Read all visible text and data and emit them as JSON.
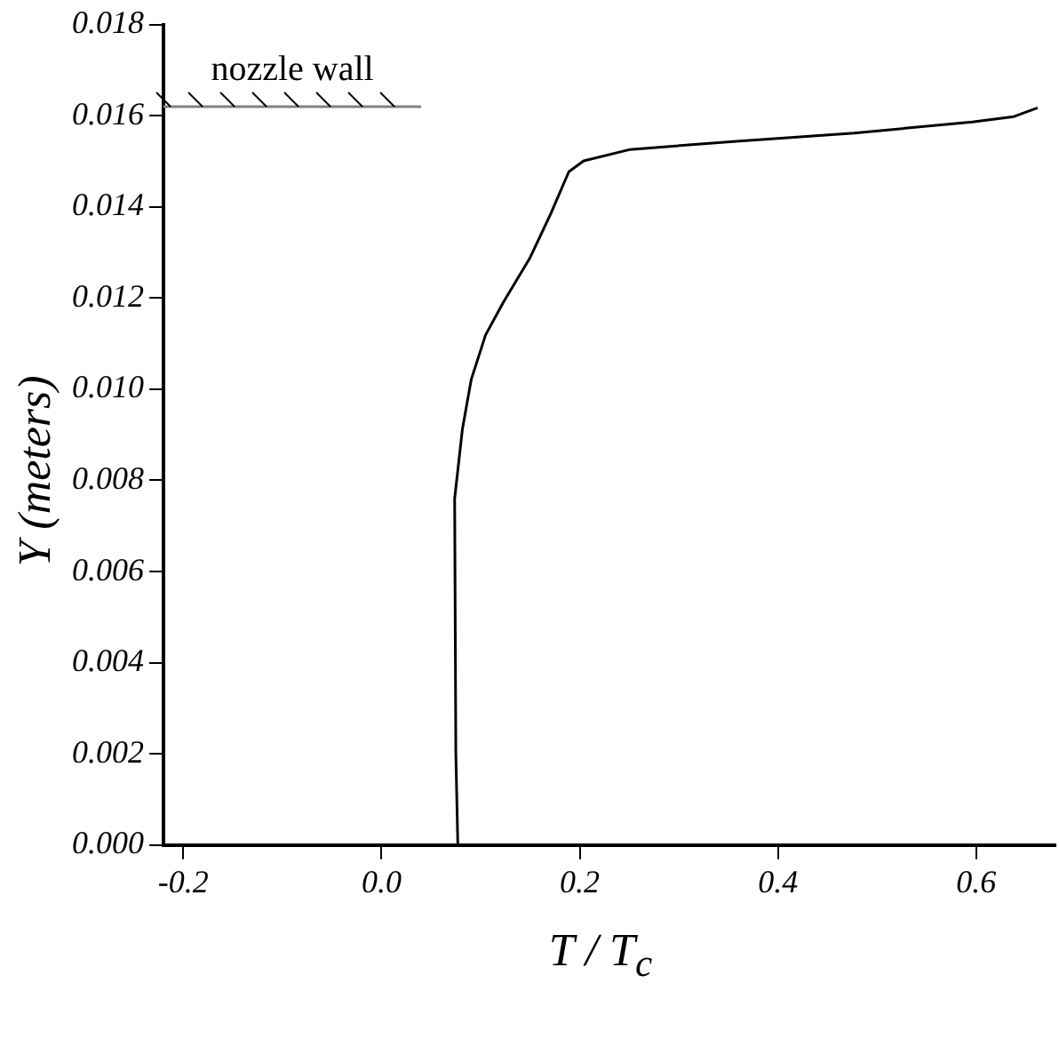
{
  "chart_data": {
    "type": "line",
    "xlabel": "T / T$_{c}$",
    "ylabel": "Y (meters)",
    "xlim": [
      -0.22,
      0.68
    ],
    "ylim": [
      0,
      0.018
    ],
    "xticks": [
      {
        "value": -0.2,
        "label": "-0.2"
      },
      {
        "value": 0,
        "label": "0.0"
      },
      {
        "value": 0.2,
        "label": "0.2"
      },
      {
        "value": 0.4,
        "label": "0.4"
      },
      {
        "value": 0.6,
        "label": "0.6"
      }
    ],
    "yticks": [
      {
        "value": 0,
        "label": "0.000"
      },
      {
        "value": 0.002,
        "label": "0.002"
      },
      {
        "value": 0.004,
        "label": "0.004"
      },
      {
        "value": 0.006,
        "label": "0.006"
      },
      {
        "value": 0.008,
        "label": "0.008"
      },
      {
        "value": 0.01,
        "label": "0.010"
      },
      {
        "value": 0.012,
        "label": "0.012"
      },
      {
        "value": 0.014,
        "label": "0.014"
      },
      {
        "value": 0.016,
        "label": "0.016"
      },
      {
        "value": 0.018,
        "label": "0.018"
      }
    ],
    "series": [
      {
        "color": "#000000",
        "x": [
          0.077,
          0.075,
          0.0738,
          0.0816,
          0.0905,
          0.105,
          0.123,
          0.15,
          0.171,
          0.189,
          0.204,
          0.251,
          0.358,
          0.477,
          0.596,
          0.638,
          0.662
        ],
        "values": [
          0,
          0.002,
          0.0076,
          0.00912,
          0.01021,
          0.01119,
          0.01191,
          0.01289,
          0.01386,
          0.01477,
          0.01501,
          0.01526,
          0.01544,
          0.01562,
          0.01586,
          0.01598,
          0.01617
        ]
      },
      {
        "color": "#808080",
        "x": [
          -0.22,
          0.04
        ],
        "values": [
          0.0162,
          0.0162
        ]
      }
    ],
    "annotations": [
      {
        "text": "nozzle wall",
        "x": -0.09,
        "y": 0.0162
      }
    ],
    "grid": false,
    "legend": false,
    "marker": "none",
    "line_style": "solid"
  }
}
